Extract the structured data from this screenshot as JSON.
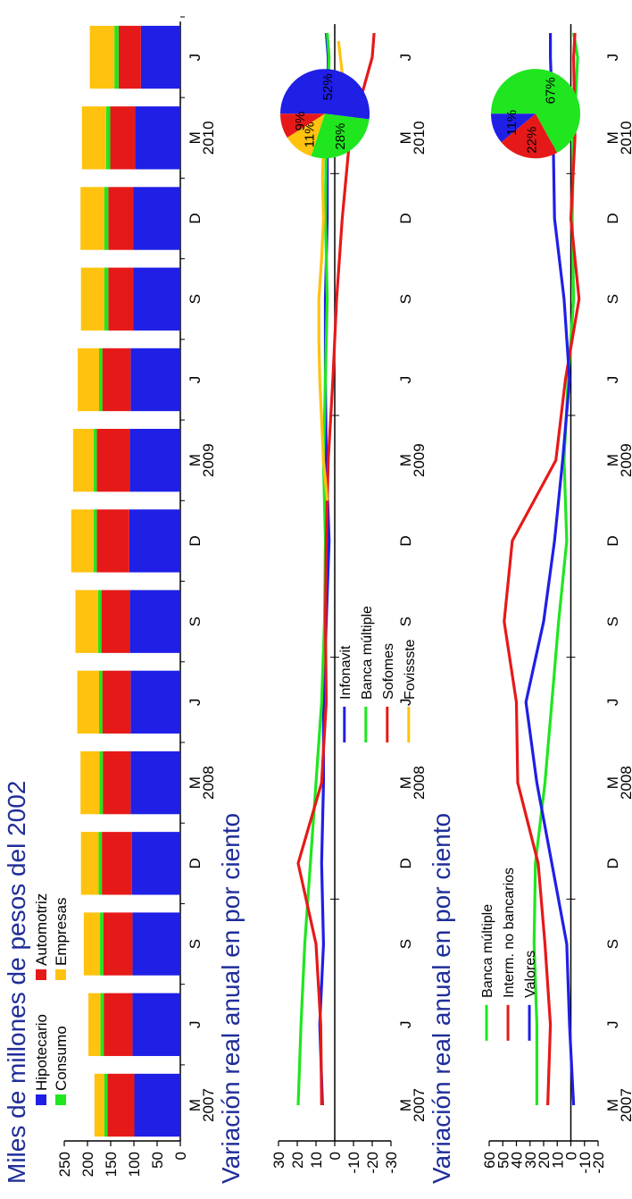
{
  "chart_data": [
    {
      "type": "bar",
      "title": "Miles de millones de pesos del 2002",
      "categories": [
        "M 2007",
        "J 2007",
        "S 2007",
        "D 2007",
        "M 2008",
        "J 2008",
        "S 2008",
        "D 2008",
        "M 2009",
        "J 2009",
        "S 2009",
        "D 2009",
        "M 2010",
        "J 2010"
      ],
      "x_tick_labels": [
        "M",
        "J",
        "S",
        "D",
        "M",
        "J",
        "S",
        "D",
        "M",
        "J",
        "S",
        "D",
        "M",
        "J"
      ],
      "year_labels": [
        "2007",
        "2008",
        "2009",
        "2010"
      ],
      "ylim": [
        0,
        250
      ],
      "y_ticks": [
        0,
        50,
        100,
        150,
        200,
        250
      ],
      "series": [
        {
          "name": "Hipotecario",
          "color": "#1f1fe6",
          "values": [
            99,
            103,
            103,
            104,
            107,
            107,
            109,
            110,
            109,
            107,
            101,
            101,
            97,
            85
          ]
        },
        {
          "name": "Automotriz",
          "color": "#e61919",
          "values": [
            58,
            62,
            63,
            65,
            60,
            61,
            61,
            70,
            71,
            61,
            54,
            54,
            54,
            48
          ]
        },
        {
          "name": "Consumo",
          "color": "#1fe61f",
          "values": [
            7,
            7,
            7,
            7,
            7,
            7,
            7,
            7,
            7,
            7,
            9,
            9,
            9,
            9
          ]
        },
        {
          "name": "Empresas",
          "color": "#ffc20e",
          "values": [
            21,
            26,
            35,
            38,
            41,
            47,
            49,
            48,
            44,
            46,
            50,
            51,
            52,
            53
          ]
        }
      ],
      "legend": "top-left"
    },
    {
      "type": "line",
      "title": "Variación real anual en por ciento",
      "x": [
        "M 2007",
        "J 2007",
        "S 2007",
        "D 2007",
        "M 2008",
        "J 2008",
        "S 2008",
        "D 2008",
        "M 2009",
        "J 2009",
        "S 2009",
        "D 2009",
        "M 2010",
        "J 2010"
      ],
      "x_tick_labels": [
        "M",
        "J",
        "S",
        "D",
        "M",
        "J",
        "S",
        "D",
        "M",
        "J",
        "S",
        "D",
        "M",
        "J"
      ],
      "year_labels": [
        "2007",
        "2008",
        "2009",
        "2010"
      ],
      "ylim": [
        -30,
        30
      ],
      "y_ticks": [
        30,
        20,
        10,
        0,
        -10,
        -20,
        -30
      ],
      "series": [
        {
          "name": "Infonavit",
          "color": "#1f1fe6",
          "x": [
            0,
            1,
            2,
            3,
            4,
            5,
            6,
            7,
            8,
            9,
            10,
            11,
            12,
            13,
            13.3
          ],
          "values": [
            6.5,
            8,
            6,
            7,
            6,
            6,
            4.5,
            3,
            4.5,
            5,
            5,
            4,
            4,
            3.5,
            4.5
          ]
        },
        {
          "name": "Banca múltiple",
          "color": "#1fe61f",
          "x": [
            0,
            1,
            2,
            3,
            4,
            5,
            6,
            7,
            8,
            9,
            10,
            11,
            12,
            13,
            13.3
          ],
          "values": [
            19.5,
            18,
            16,
            13,
            10,
            7,
            5.5,
            5,
            6,
            5,
            4,
            5,
            4.5,
            3,
            4
          ]
        },
        {
          "name": "Sofomes",
          "color": "#e61919",
          "x": [
            0,
            1,
            2,
            3,
            4,
            5,
            6,
            7,
            8,
            9,
            10,
            11,
            12,
            13,
            13.3
          ],
          "values": [
            7,
            7.5,
            10,
            19.5,
            7,
            4.5,
            5,
            4.5,
            3.5,
            1,
            -1,
            -4,
            -8,
            -20,
            -21
          ]
        },
        {
          "name": "Fovissste",
          "color": "#ffc20e",
          "x": [
            7.5,
            8,
            8.5,
            9,
            9.5,
            10,
            10.5,
            11,
            11.5,
            12,
            12.5,
            12.8,
            13.2
          ],
          "values": [
            4,
            6,
            7,
            8,
            8.5,
            8.5,
            7,
            6,
            6.5,
            6,
            5,
            -4,
            -2
          ]
        }
      ],
      "pie": {
        "labels": [
          "52%",
          "28%",
          "11%",
          "9%"
        ],
        "colors": [
          "#1f1fe6",
          "#1fe61f",
          "#ffc20e",
          "#e61919"
        ],
        "values": [
          52,
          28,
          11,
          9
        ]
      },
      "legend": "bottom-left"
    },
    {
      "type": "line",
      "title": "Variación real anual en por ciento",
      "x": [
        "M 2007",
        "J 2007",
        "S 2007",
        "D 2007",
        "M 2008",
        "J 2008",
        "S 2008",
        "D 2008",
        "M 2009",
        "J 2009",
        "S 2009",
        "D 2009",
        "M 2010",
        "J 2010"
      ],
      "x_tick_labels": [
        "M",
        "J",
        "S",
        "D",
        "M",
        "J",
        "S",
        "D",
        "M",
        "J",
        "S",
        "D",
        "M",
        "J"
      ],
      "year_labels": [
        "2007",
        "2008",
        "2009",
        "2010"
      ],
      "ylim": [
        -20,
        60
      ],
      "y_ticks": [
        60,
        50,
        40,
        30,
        20,
        10,
        0,
        -10,
        -20
      ],
      "series": [
        {
          "name": "Banca múltiple",
          "color": "#1fe61f",
          "x": [
            0,
            1,
            2,
            3,
            4,
            5,
            6,
            7,
            8,
            9,
            10,
            11,
            12,
            13,
            13.3
          ],
          "values": [
            25,
            25,
            27,
            26,
            19,
            14,
            9,
            3,
            5,
            2,
            -2,
            -1,
            -2,
            -5,
            -2
          ]
        },
        {
          "name": "Interm. no bancarios",
          "color": "#e61919",
          "x": [
            0,
            1,
            2,
            3,
            4,
            5,
            6,
            7,
            8,
            9,
            10,
            11,
            12,
            13,
            13.3
          ],
          "values": [
            17,
            15,
            19,
            24,
            39,
            40,
            49,
            43,
            11,
            4,
            -6,
            0,
            -3,
            -2,
            -3
          ]
        },
        {
          "name": "Valores",
          "color": "#1f1fe6",
          "x": [
            0,
            1,
            2,
            3,
            4,
            5,
            6,
            7,
            8,
            9,
            10,
            11,
            12,
            13,
            13.3
          ],
          "values": [
            -2,
            1,
            3,
            14,
            25,
            33,
            20,
            12,
            6,
            1,
            5,
            12,
            13,
            15,
            15
          ]
        }
      ],
      "pie": {
        "labels": [
          "67%",
          "22%",
          "11%"
        ],
        "colors": [
          "#1fe61f",
          "#e61919",
          "#1f1fe6"
        ],
        "values": [
          67,
          22,
          11
        ]
      },
      "legend": "top-left"
    }
  ]
}
